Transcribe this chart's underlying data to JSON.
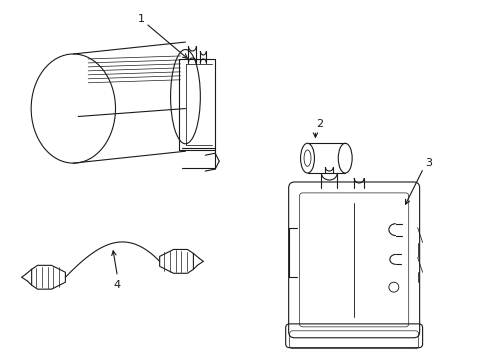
{
  "background_color": "#ffffff",
  "line_color": "#1a1a1a",
  "line_width": 0.8,
  "fig_width": 4.89,
  "fig_height": 3.6,
  "dpi": 100
}
